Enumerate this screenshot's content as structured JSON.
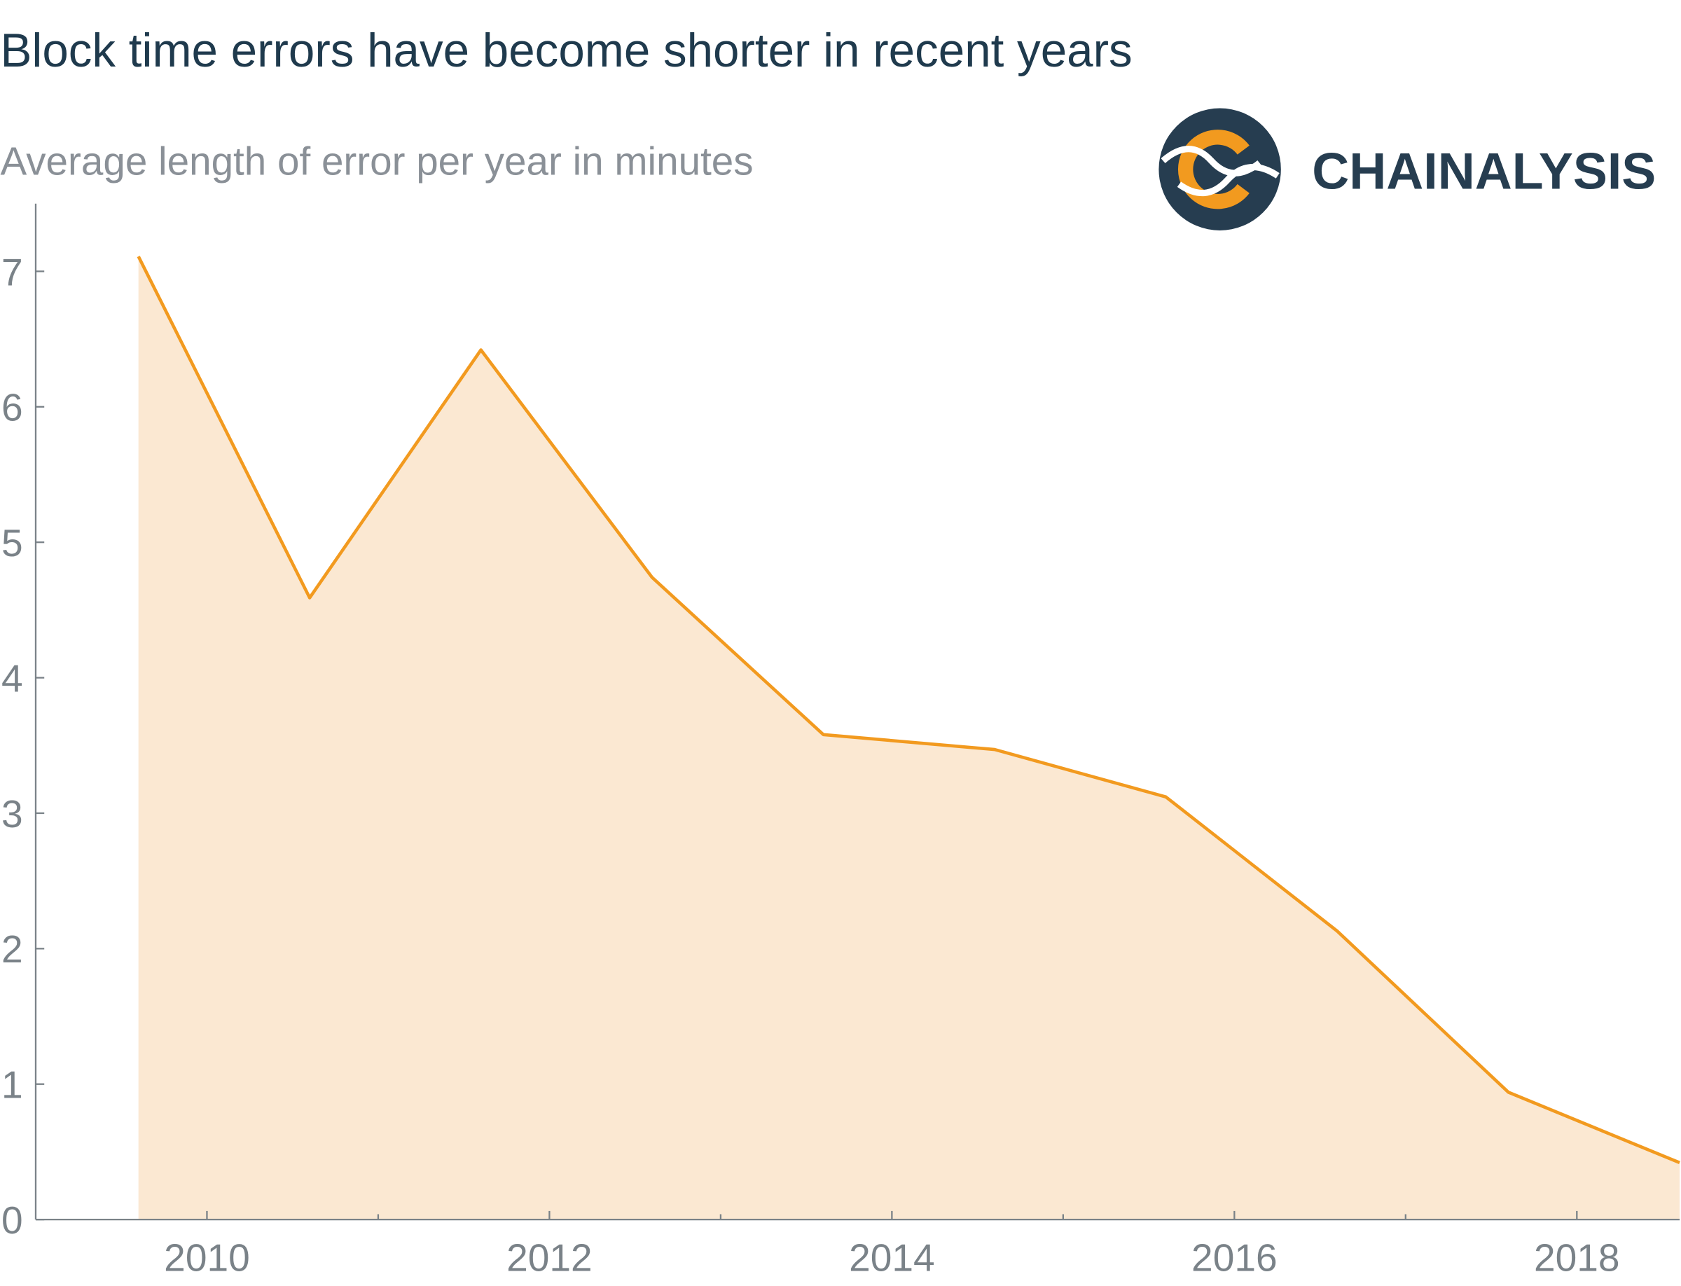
{
  "chart_data": {
    "type": "area",
    "title": "Block time errors have become shorter in recent years",
    "subtitle": "Average length of error per year in minutes",
    "x": [
      2009.6,
      2010.6,
      2011.6,
      2012.6,
      2013.6,
      2014.6,
      2015.6,
      2016.6,
      2017.6,
      2018.6
    ],
    "series": [
      {
        "color": "#f29a1f",
        "fill": "#fbe8d2",
        "values": [
          7.11,
          4.59,
          6.42,
          4.74,
          3.58,
          3.47,
          3.12,
          2.13,
          0.94,
          0.42
        ]
      }
    ],
    "xlim": [
      2009,
      2018.6
    ],
    "xticks": [
      2010,
      2012,
      2014,
      2016,
      2018
    ],
    "minor_xticks": [
      2011,
      2013,
      2015,
      2017
    ],
    "ylim": [
      0,
      7.5
    ],
    "yticks": [
      0,
      1,
      2,
      3,
      4,
      5,
      6,
      7
    ],
    "logo": {
      "text": "CHAINALYSIS"
    }
  }
}
